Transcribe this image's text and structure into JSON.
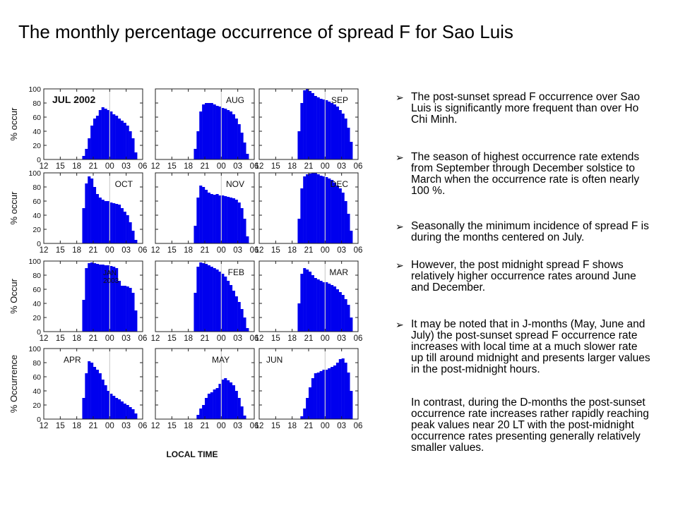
{
  "slide": {
    "title": "The monthly percentage occurrence of spread F for Sao Luis",
    "bullets": [
      {
        "text": "The post-sunset spread F occurrence over Sao Luis is significantly more frequent than over Ho Chi Minh.",
        "arrow": true
      },
      {
        "text": "The season of highest occurrence rate extends from September through December solstice to March when the occurrence rate is often nearly 100 %.",
        "arrow": true
      },
      {
        "text": " Seasonally the minimum incidence of spread F is during the months centered on July.",
        "arrow": true
      },
      {
        "text": "However, the post midnight spread F shows relatively higher occurrence rates around June and December.",
        "arrow": true
      },
      {
        "text": "It may be noted that in J-months (May, June and July) the post-sunset spread F occurrence rate increases with local time at a much slower rate up till around midnight and presents larger values in the post-midnight hours.",
        "arrow": true
      },
      {
        "text": "In contrast, during the D-months the post-sunset occurrence rate increases rather rapidly reaching peak values near 20 LT with the post-midnight occurrence rates presenting generally relatively smaller values.",
        "arrow": false
      }
    ]
  },
  "chart_data": {
    "type": "bar",
    "bar_color": "#0000ee",
    "ylim": [
      0,
      100
    ],
    "yticks": [
      "0",
      "20",
      "40",
      "60",
      "80",
      "100"
    ],
    "xticks": [
      "12",
      "15",
      "18",
      "21",
      "00",
      "03",
      "06"
    ],
    "xlabel": "LOCAL TIME",
    "row_ylabels": [
      "% occur",
      "% occur",
      "% Occur",
      "% Occurrence"
    ],
    "x_hours": [
      12,
      12.5,
      13,
      13.5,
      14,
      14.5,
      15,
      15.5,
      16,
      16.5,
      17,
      17.5,
      18,
      18.5,
      19,
      19.5,
      20,
      20.5,
      21,
      21.5,
      22,
      22.5,
      23,
      23.5,
      24,
      24.5,
      25,
      25.5,
      26,
      26.5,
      27,
      27.5,
      28,
      28.5,
      29,
      29.5,
      30
    ],
    "panels": [
      {
        "label": "JUL 2002",
        "values": [
          0,
          0,
          0,
          0,
          0,
          0,
          0,
          0,
          0,
          0,
          0,
          0,
          0,
          0,
          5,
          15,
          30,
          48,
          58,
          62,
          70,
          74,
          72,
          70,
          68,
          64,
          62,
          58,
          55,
          52,
          48,
          40,
          30,
          10,
          0,
          0,
          0
        ]
      },
      {
        "label": "AUG",
        "values": [
          0,
          0,
          0,
          0,
          0,
          0,
          0,
          0,
          0,
          0,
          0,
          0,
          0,
          0,
          15,
          40,
          68,
          78,
          80,
          80,
          80,
          78,
          76,
          75,
          73,
          72,
          70,
          68,
          64,
          58,
          50,
          38,
          24,
          8,
          0,
          0,
          0
        ]
      },
      {
        "label": "SEP",
        "values": [
          0,
          0,
          0,
          0,
          0,
          0,
          0,
          0,
          0,
          0,
          0,
          0,
          0,
          0,
          40,
          80,
          98,
          100,
          97,
          94,
          90,
          88,
          86,
          85,
          84,
          82,
          80,
          78,
          75,
          70,
          65,
          58,
          45,
          25,
          0,
          0,
          0
        ]
      },
      {
        "label": "OCT",
        "values": [
          0,
          0,
          0,
          0,
          0,
          0,
          0,
          0,
          0,
          0,
          0,
          0,
          0,
          0,
          50,
          85,
          95,
          92,
          80,
          70,
          65,
          62,
          60,
          60,
          58,
          57,
          56,
          55,
          50,
          45,
          40,
          30,
          18,
          5,
          0,
          0,
          0
        ]
      },
      {
        "label": "NOV",
        "values": [
          0,
          0,
          0,
          0,
          0,
          0,
          0,
          0,
          0,
          0,
          0,
          0,
          0,
          0,
          25,
          65,
          82,
          80,
          76,
          72,
          70,
          69,
          70,
          68,
          68,
          67,
          66,
          65,
          64,
          62,
          58,
          50,
          35,
          10,
          0,
          0,
          0
        ]
      },
      {
        "label": "DEC",
        "values": [
          0,
          0,
          0,
          0,
          0,
          0,
          0,
          0,
          0,
          0,
          0,
          0,
          0,
          0,
          35,
          78,
          95,
          98,
          99,
          100,
          100,
          98,
          96,
          95,
          94,
          92,
          90,
          86,
          82,
          78,
          72,
          60,
          42,
          18,
          0,
          0,
          0
        ]
      },
      {
        "label": "JAN\n2003",
        "values": [
          0,
          0,
          0,
          0,
          0,
          0,
          0,
          0,
          0,
          0,
          0,
          0,
          0,
          0,
          45,
          90,
          97,
          98,
          97,
          96,
          95,
          95,
          94,
          94,
          93,
          92,
          90,
          72,
          65,
          65,
          64,
          62,
          55,
          30,
          0,
          0,
          0
        ]
      },
      {
        "label": "FEB",
        "values": [
          0,
          0,
          0,
          0,
          0,
          0,
          0,
          0,
          0,
          0,
          0,
          0,
          0,
          0,
          55,
          92,
          98,
          97,
          96,
          94,
          92,
          90,
          88,
          85,
          82,
          78,
          72,
          66,
          58,
          50,
          42,
          32,
          20,
          5,
          0,
          0,
          0
        ]
      },
      {
        "label": "MAR",
        "values": [
          0,
          0,
          0,
          0,
          0,
          0,
          0,
          0,
          0,
          0,
          0,
          0,
          0,
          0,
          40,
          82,
          90,
          88,
          85,
          80,
          76,
          74,
          72,
          70,
          70,
          68,
          66,
          64,
          60,
          56,
          52,
          46,
          38,
          20,
          0,
          0,
          0
        ]
      },
      {
        "label": "APR",
        "values": [
          0,
          0,
          0,
          0,
          0,
          0,
          0,
          0,
          0,
          0,
          0,
          0,
          0,
          0,
          30,
          65,
          82,
          80,
          74,
          70,
          65,
          56,
          48,
          40,
          36,
          33,
          30,
          28,
          25,
          22,
          20,
          17,
          14,
          8,
          0,
          0,
          0
        ]
      },
      {
        "label": "MAY",
        "values": [
          0,
          0,
          0,
          0,
          0,
          0,
          0,
          0,
          0,
          0,
          0,
          0,
          0,
          0,
          0,
          6,
          15,
          20,
          30,
          36,
          38,
          42,
          44,
          50,
          56,
          58,
          55,
          52,
          48,
          40,
          30,
          18,
          5,
          0,
          0,
          0,
          0
        ]
      },
      {
        "label": "JUN",
        "values": [
          0,
          0,
          0,
          0,
          0,
          0,
          0,
          0,
          0,
          0,
          0,
          0,
          0,
          0,
          0,
          4,
          15,
          30,
          45,
          58,
          65,
          66,
          68,
          70,
          70,
          72,
          74,
          76,
          80,
          85,
          86,
          80,
          66,
          40,
          0,
          0,
          0
        ]
      }
    ]
  }
}
